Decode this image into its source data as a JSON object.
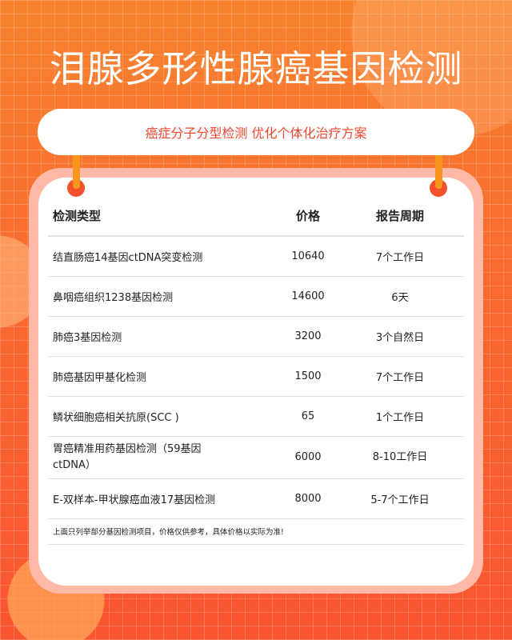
{
  "title": "泪腺多形性腺癌基因检测",
  "subtitle": "癌症分子分型检测 优化个体化治疗方案",
  "table": {
    "headers": [
      "检测类型",
      "价格",
      "报告周期"
    ],
    "rows": [
      [
        "结直肠癌14基因ctDNA突变检测",
        "10640",
        "7个工作日"
      ],
      [
        "鼻咽癌组织1238基因检测",
        "14600",
        "6天"
      ],
      [
        "肺癌3基因检测",
        "3200",
        "3个自然日"
      ],
      [
        "肺癌基因甲基化检测",
        "1500",
        "7个工作日"
      ],
      [
        "鳞状细胞癌相关抗原(SCC )",
        "65",
        "1个工作日"
      ],
      [
        "胃癌精准用药基因检测（59基因ctDNA）",
        "6000",
        "8-10工作日"
      ],
      [
        "E-双样本-甲状腺癌血液17基因检测",
        "8000",
        "5-7个工作日"
      ]
    ],
    "note": "上面只列举部分基因检测项目，价格仅供参考，具体价格以实际为准!"
  },
  "colors": {
    "accent": "#f5462e",
    "rod": "#f7961c"
  }
}
